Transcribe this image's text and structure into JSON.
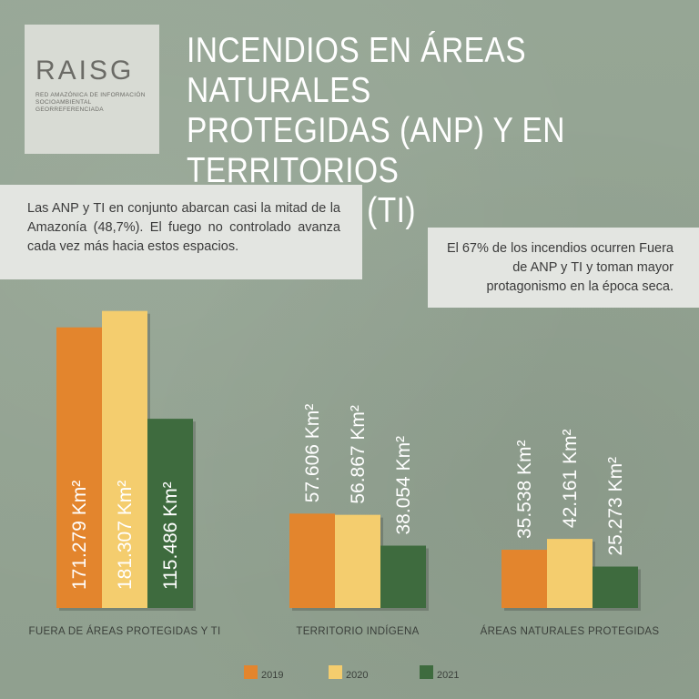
{
  "logo": {
    "name": "RAISG",
    "subtitle_line1": "RED AMAZÓNICA DE INFORMACIÓN",
    "subtitle_line2": "SOCIOAMBIENTAL GEORREFERENCIADA"
  },
  "title": "INCENDIOS EN ÁREAS NATURALES\nPROTEGIDAS (ANP) Y EN TERRITORIOS\nÍNDIGENAS (TI)",
  "notes": {
    "left": "Las ANP y TI en conjunto abarcan casi la mitad de la Amazonía (48,7%). El fuego no controlado avanza cada vez más hacia estos espacios.",
    "right": "El 67% de los incendios ocurren Fuera de ANP y TI y toman mayor protagonismo en la época seca."
  },
  "colors": {
    "2019": "#e3852d",
    "2020": "#f4cd6e",
    "2021": "#3e6b3e"
  },
  "chart_data": {
    "type": "bar",
    "categories": [
      "FUERA DE ÁREAS PROTEGIDAS Y TI",
      "TERRITORIO INDÍGENA",
      "ÁREAS NATURALES PROTEGIDAS"
    ],
    "series": [
      {
        "name": "2019",
        "values": [
          171279,
          57606,
          35538
        ],
        "labels": [
          "171.279 Km²",
          "57.606 Km²",
          "35.538 Km²"
        ]
      },
      {
        "name": "2020",
        "values": [
          181307,
          56867,
          42161
        ],
        "labels": [
          "181.307 Km²",
          "56.867 Km²",
          "42.161 Km²"
        ]
      },
      {
        "name": "2021",
        "values": [
          115486,
          38054,
          25273
        ],
        "labels": [
          "115.486 Km²",
          "38.054 Km²",
          "25.273 Km²"
        ]
      }
    ],
    "unit": "Km²",
    "legend_position": "bottom"
  }
}
